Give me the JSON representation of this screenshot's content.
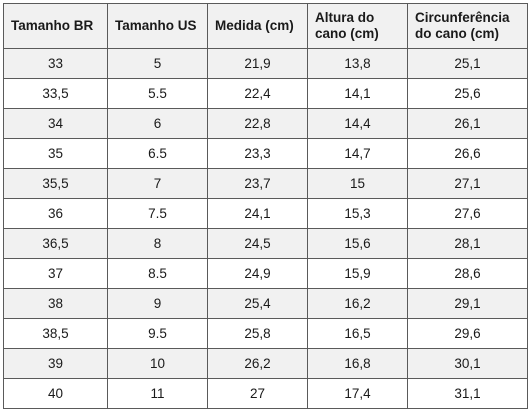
{
  "table": {
    "header": [
      "Tamanho BR",
      "Tamanho US",
      "Medida (cm)",
      "Altura do cano (cm)",
      "Circunferência do cano (cm)"
    ],
    "rows": [
      [
        "33",
        "5",
        "21,9",
        "13,8",
        "25,1"
      ],
      [
        "33,5",
        "5.5",
        "22,4",
        "14,1",
        "25,6"
      ],
      [
        "34",
        "6",
        "22,8",
        "14,4",
        "26,1"
      ],
      [
        "35",
        "6.5",
        "23,3",
        "14,7",
        "26,6"
      ],
      [
        "35,5",
        "7",
        "23,7",
        "15",
        "27,1"
      ],
      [
        "36",
        "7.5",
        "24,1",
        "15,3",
        "27,6"
      ],
      [
        "36,5",
        "8",
        "24,5",
        "15,6",
        "28,1"
      ],
      [
        "37",
        "8.5",
        "24,9",
        "15,9",
        "28,6"
      ],
      [
        "38",
        "9",
        "25,4",
        "16,2",
        "29,1"
      ],
      [
        "38,5",
        "9.5",
        "25,8",
        "16,5",
        "29,6"
      ],
      [
        "39",
        "10",
        "26,2",
        "16,8",
        "30,1"
      ],
      [
        "40",
        "11",
        "27",
        "17,4",
        "31,1"
      ]
    ]
  }
}
